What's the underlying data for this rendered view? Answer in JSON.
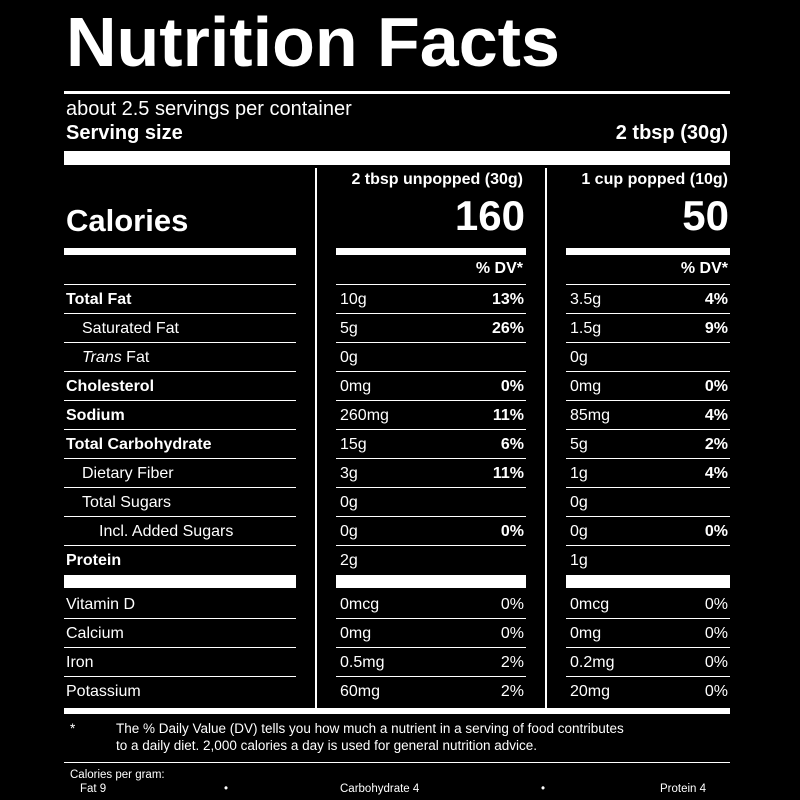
{
  "title": "Nutrition Facts",
  "servings_per_container": "about 2.5 servings per container",
  "serving_size_label": "Serving size",
  "serving_size_value": "2 tbsp (30g)",
  "columns": [
    {
      "header": "2 tbsp unpopped (30g)",
      "calories": "160"
    },
    {
      "header": "1 cup popped (10g)",
      "calories": "50"
    }
  ],
  "calories_label": "Calories",
  "dv_header": "% DV*",
  "nutrients": [
    {
      "name": "Total Fat",
      "c1": "10g",
      "p1": "13%",
      "c2": "3.5g",
      "p2": "4%"
    },
    {
      "name": "Saturated Fat",
      "c1": "5g",
      "p1": "26%",
      "c2": "1.5g",
      "p2": "9%"
    },
    {
      "name_italic": "Trans",
      "name_rest": " Fat",
      "c1": "0g",
      "p1": "",
      "c2": "0g",
      "p2": ""
    },
    {
      "name": "Cholesterol",
      "c1": "0mg",
      "p1": "0%",
      "c2": "0mg",
      "p2": "0%"
    },
    {
      "name": "Sodium",
      "c1": "260mg",
      "p1": "11%",
      "c2": "85mg",
      "p2": "4%"
    },
    {
      "name": "Total Carbohydrate",
      "c1": "15g",
      "p1": "6%",
      "c2": "5g",
      "p2": "2%"
    },
    {
      "name": "Dietary Fiber",
      "c1": "3g",
      "p1": "11%",
      "c2": "1g",
      "p2": "4%"
    },
    {
      "name": "Total Sugars",
      "c1": "0g",
      "p1": "",
      "c2": "0g",
      "p2": ""
    },
    {
      "name": "Incl. Added Sugars",
      "c1": "0g",
      "p1": "0%",
      "c2": "0g",
      "p2": "0%"
    },
    {
      "name": "Protein",
      "c1": "2g",
      "p1": "",
      "c2": "1g",
      "p2": ""
    }
  ],
  "vitamins": [
    {
      "name": "Vitamin D",
      "c1": "0mcg",
      "p1": "0%",
      "c2": "0mcg",
      "p2": "0%"
    },
    {
      "name": "Calcium",
      "c1": "0mg",
      "p1": "0%",
      "c2": "0mg",
      "p2": "0%"
    },
    {
      "name": "Iron",
      "c1": "0.5mg",
      "p1": "2%",
      "c2": "0.2mg",
      "p2": "0%"
    },
    {
      "name": "Potassium",
      "c1": "60mg",
      "p1": "2%",
      "c2": "20mg",
      "p2": "0%"
    }
  ],
  "footnote": {
    "asterisk": "*",
    "line1": "The % Daily Value (DV) tells you how much a nutrient in a serving of food contributes",
    "line2": "to a daily diet. 2,000 calories a day is used for general nutrition advice."
  },
  "calories_per_gram": {
    "label": "Calories per gram:",
    "fat": "Fat 9",
    "carb": "Carbohydrate 4",
    "protein": "Protein 4",
    "bullet": "•"
  }
}
